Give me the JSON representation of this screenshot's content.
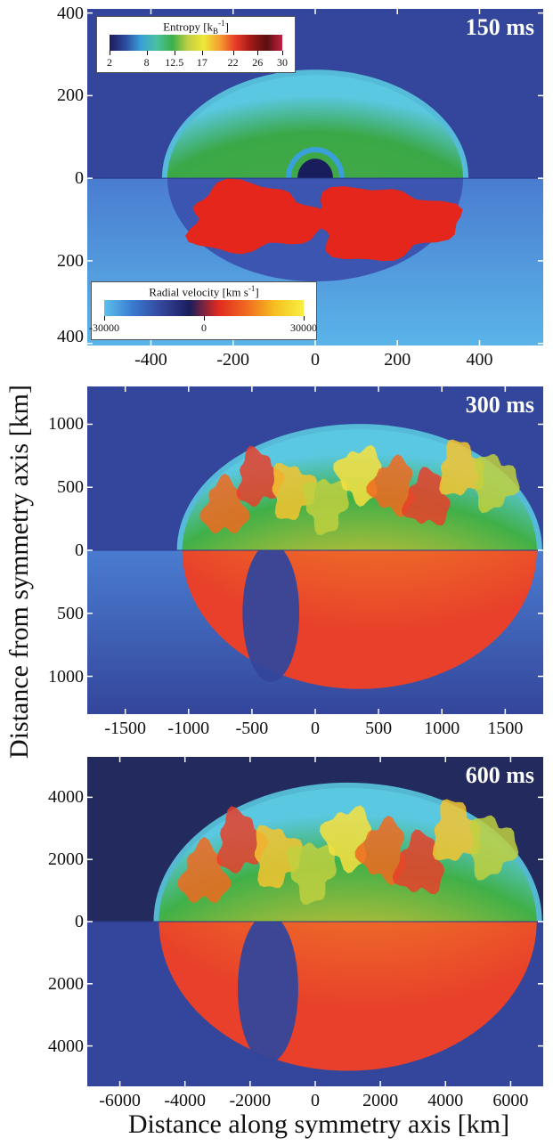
{
  "chart_data": [
    {
      "type": "heatmap",
      "time_label": "150 ms",
      "upper_half": "Entropy [kB-1]",
      "lower_half": "Radial velocity [km s-1]",
      "x_ticks": [
        -400,
        -200,
        0,
        200,
        400
      ],
      "x_tick_labels": [
        "-400",
        "-200",
        "0",
        "200",
        "400"
      ],
      "y_ticks": [
        400,
        200,
        0,
        -200,
        -400
      ],
      "y_tick_labels": [
        "400",
        "200",
        "0",
        "200",
        "400"
      ],
      "xlim": [
        -555,
        555
      ],
      "ylim": [
        -405,
        410
      ],
      "shock_radius_x": 360,
      "shock_radius_y": 250,
      "colorbars": [
        {
          "title": "Entropy [k",
          "title_sub": "B",
          "title_sup": "-1",
          "title_end": "]",
          "tick_labels": [
            "2",
            "8",
            "12.5",
            "17",
            "22",
            "26",
            "30"
          ],
          "tick_values": [
            2,
            8,
            12.5,
            17,
            22,
            26,
            30
          ],
          "range": [
            2,
            30
          ],
          "colors": [
            "#1a1d5c",
            "#2c4a9c",
            "#3aa0d8",
            "#4ac0a0",
            "#3cb04a",
            "#c0d040",
            "#f0e838",
            "#f4a030",
            "#e83c28",
            "#a01818",
            "#5a1010",
            "#c02040"
          ]
        },
        {
          "title": "Radial velocity [km s",
          "title_sup": "-1",
          "title_end": "]",
          "tick_labels": [
            "-30000",
            "0",
            "30000"
          ],
          "tick_values": [
            -30000,
            0,
            30000
          ],
          "range": [
            -30000,
            30000
          ],
          "colors": [
            "#5cc0ec",
            "#3a7ad0",
            "#34469b",
            "#1a1d5c",
            "#e02a20",
            "#f06a20",
            "#f6c020",
            "#f8f040"
          ]
        }
      ]
    },
    {
      "type": "heatmap",
      "time_label": "300 ms",
      "upper_half": "Entropy",
      "lower_half": "Radial velocity",
      "x_ticks": [
        -1500,
        -1000,
        -500,
        0,
        500,
        1000,
        1500
      ],
      "x_tick_labels": [
        "-1500",
        "-1000",
        "-500",
        "0",
        "500",
        "1000",
        "1500"
      ],
      "y_ticks": [
        1000,
        500,
        0,
        -500,
        -1000
      ],
      "y_tick_labels": [
        "1000",
        "500",
        "0",
        "500",
        "1000"
      ],
      "xlim": [
        -1800,
        1800
      ],
      "ylim": [
        -1300,
        1300
      ],
      "shock_left_x": -1050,
      "shock_right_x": 1750,
      "shock_top_y": 960,
      "shock_bottom_y": -1100
    },
    {
      "type": "heatmap",
      "time_label": "600 ms",
      "upper_half": "Entropy",
      "lower_half": "Radial velocity",
      "x_ticks": [
        -6000,
        -4000,
        -2000,
        0,
        2000,
        4000,
        6000
      ],
      "x_tick_labels": [
        "-6000",
        "-4000",
        "-2000",
        "0",
        "2000",
        "4000",
        "6000"
      ],
      "y_ticks": [
        4000,
        2000,
        0,
        -2000,
        -4000
      ],
      "y_tick_labels": [
        "4000",
        "2000",
        "0",
        "2000",
        "4000"
      ],
      "xlim": [
        -7000,
        7000
      ],
      "ylim": [
        -5300,
        5300
      ],
      "shock_left_x": -4800,
      "shock_right_x": 6800,
      "shock_top_y": 4300,
      "shock_bottom_y": -4800
    }
  ],
  "axes": {
    "ylabel": "Distance from symmetry axis [km]",
    "xlabel": "Distance along symmetry axis [km]"
  }
}
